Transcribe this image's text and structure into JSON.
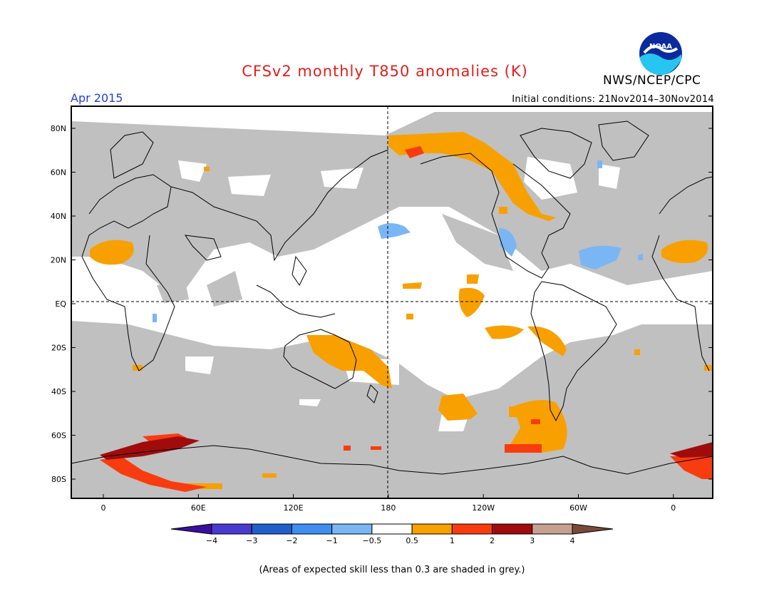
{
  "header": {
    "title": "CFSv2 monthly T850 anomalies (K)",
    "organization": "NWS/NCEP/CPC",
    "logo_text": "NOAA",
    "valid_month": "Apr 2015",
    "initial_conditions": "Initial conditions: 21Nov2014–30Nov2014"
  },
  "map": {
    "latitude_labels": [
      "80N",
      "60N",
      "40N",
      "20N",
      "EQ",
      "20S",
      "40S",
      "60S",
      "80S"
    ],
    "longitude_labels": [
      "0",
      "60E",
      "120E",
      "180",
      "120W",
      "60W",
      "0"
    ],
    "grey_shading": "expected skill less than 0.3"
  },
  "legend": {
    "labels": [
      "−4",
      "−3",
      "−2",
      "−1",
      "−0.5",
      "0.5",
      "1",
      "2",
      "3",
      "4"
    ],
    "colors": [
      "#3a0fa0",
      "#4a3ad0",
      "#2060c8",
      "#3f8ef0",
      "#7ab6f4",
      "#ffffff",
      "#f8a000",
      "#f83c10",
      "#a00c0c",
      "#c8a090",
      "#7a4a38"
    ]
  },
  "footnote": "(Areas of expected skill less than 0.3 are shaded in grey.)"
}
